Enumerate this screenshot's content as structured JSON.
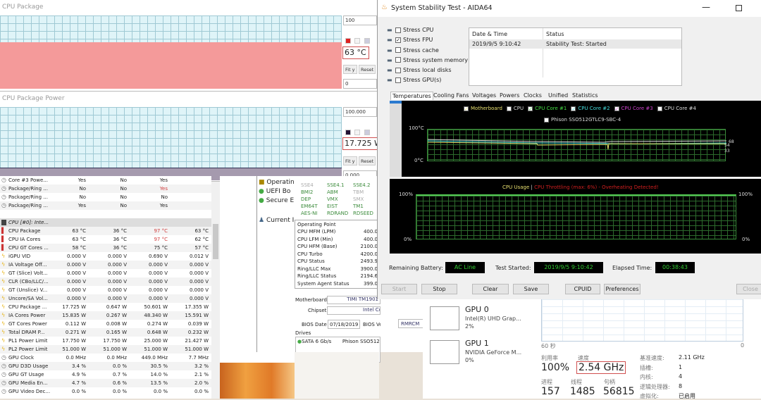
{
  "graphs": [
    {
      "title": "CPU Package",
      "max": "100",
      "value": "63 °C",
      "min": "0",
      "fill_percent": 63,
      "fit": "Fit y",
      "reset": "Reset",
      "color": "#f49a9a"
    },
    {
      "title": "CPU Package Power",
      "max": "100.000",
      "value": "17.725 W",
      "min": "0.000",
      "fill_percent": 17.7,
      "fit": "Fit y",
      "reset": "Reset",
      "color": "#a59aae"
    }
  ],
  "sensors": {
    "top_rows": [
      {
        "label": "Core #3 Powe...",
        "v": [
          "Yes",
          "No",
          "Yes",
          ""
        ]
      },
      {
        "label": "Package/Ring ...",
        "v": [
          "No",
          "No",
          "Yes",
          ""
        ],
        "red": 2
      },
      {
        "label": "Package/Ring ...",
        "v": [
          "No",
          "No",
          "No",
          ""
        ]
      },
      {
        "label": "Package/Ring ...",
        "v": [
          "Yes",
          "No",
          "Yes",
          ""
        ]
      }
    ],
    "group": "CPU [#0]: Inte...",
    "rows": [
      {
        "label": "CPU Package",
        "v": [
          "63 °C",
          "36 °C",
          "97 °C",
          "63 °C"
        ],
        "icon": "thermometer",
        "red": 2
      },
      {
        "label": "CPU IA Cores",
        "v": [
          "63 °C",
          "36 °C",
          "97 °C",
          "62 °C"
        ],
        "icon": "thermometer",
        "red": 2
      },
      {
        "label": "CPU GT Cores ...",
        "v": [
          "58 °C",
          "36 °C",
          "75 °C",
          "57 °C"
        ],
        "icon": "thermometer"
      },
      {
        "label": "iGPU VID",
        "v": [
          "0.000 V",
          "0.000 V",
          "0.690 V",
          "0.012 V"
        ],
        "icon": "bolt"
      },
      {
        "label": "IA Voltage Off...",
        "v": [
          "0.000 V",
          "0.000 V",
          "0.000 V",
          "0.000 V"
        ],
        "icon": "bolt"
      },
      {
        "label": "GT (Slice) Volt...",
        "v": [
          "0.000 V",
          "0.000 V",
          "0.000 V",
          "0.000 V"
        ],
        "icon": "bolt"
      },
      {
        "label": "CLR (CBo/LLC/...",
        "v": [
          "0.000 V",
          "0.000 V",
          "0.000 V",
          "0.000 V"
        ],
        "icon": "bolt"
      },
      {
        "label": "GT (Unslice) V...",
        "v": [
          "0.000 V",
          "0.000 V",
          "0.000 V",
          "0.000 V"
        ],
        "icon": "bolt"
      },
      {
        "label": "Uncore/SA Vol...",
        "v": [
          "0.000 V",
          "0.000 V",
          "0.000 V",
          "0.000 V"
        ],
        "icon": "bolt"
      },
      {
        "label": "CPU Package ...",
        "v": [
          "17.725 W",
          "0.647 W",
          "50.601 W",
          "17.355 W"
        ],
        "icon": "bolt"
      },
      {
        "label": "IA Cores Power",
        "v": [
          "15.835 W",
          "0.267 W",
          "48.340 W",
          "15.591 W"
        ],
        "icon": "bolt"
      },
      {
        "label": "GT Cores Power",
        "v": [
          "0.112 W",
          "0.008 W",
          "0.274 W",
          "0.039 W"
        ],
        "icon": "bolt"
      },
      {
        "label": "Total DRAM P...",
        "v": [
          "0.271 W",
          "0.165 W",
          "0.648 W",
          "0.232 W"
        ],
        "icon": "bolt"
      },
      {
        "label": "PL1 Power Limit",
        "v": [
          "17.750 W",
          "17.750 W",
          "25.000 W",
          "21.427 W"
        ],
        "icon": "bolt"
      },
      {
        "label": "PL2 Power Limit",
        "v": [
          "51.000 W",
          "51.000 W",
          "51.000 W",
          "51.000 W"
        ],
        "icon": "bolt"
      },
      {
        "label": "GPU Clock",
        "v": [
          "0.0 MHz",
          "0.0 MHz",
          "449.0 MHz",
          "7.7 MHz"
        ],
        "icon": "clock"
      },
      {
        "label": "GPU D3D Usage",
        "v": [
          "3.4 %",
          "0.0 %",
          "30.5 %",
          "3.2 %"
        ],
        "icon": "clock"
      },
      {
        "label": "GPU GT Usage",
        "v": [
          "4.9 %",
          "0.7 %",
          "14.0 %",
          "2.1 %"
        ],
        "icon": "clock"
      },
      {
        "label": "GPU Media En...",
        "v": [
          "4.7 %",
          "0.6 %",
          "13.5 %",
          "2.0 %"
        ],
        "icon": "clock"
      },
      {
        "label": "GPU Video Dec...",
        "v": [
          "0.0 %",
          "0.0 %",
          "0.0 %",
          "0.0 %"
        ],
        "icon": "clock"
      }
    ]
  },
  "summary": {
    "items": [
      "Operatin",
      "UEFI Bo",
      "Secure E",
      "Current I"
    ],
    "features": [
      [
        "SSE4",
        "SSE4.1",
        "SSE4.2"
      ],
      [
        "BMI2",
        "ABM",
        "TBM"
      ],
      [
        "DEP",
        "VMX",
        "SMX"
      ],
      [
        "EM64T",
        "EIST",
        "TM1"
      ],
      [
        "AES-NI",
        "RDRAND",
        "RDSEED"
      ]
    ],
    "op_header": "Operating Point",
    "op_rows": [
      [
        "CPU MFM (LPM)",
        "400.0"
      ],
      [
        "CPU LFM (Min)",
        "400.0"
      ],
      [
        "CPU HFM (Base)",
        "2100.0"
      ],
      [
        "CPU Turbo",
        "4200.0"
      ],
      [
        "CPU Status",
        "2493.9"
      ],
      [
        "Ring/LLC Max",
        "3900.0"
      ],
      [
        "Ring/LLC Status",
        "2194.6"
      ],
      [
        "System Agent Status",
        "399.0"
      ]
    ],
    "motherboard_label": "Motherboard",
    "motherboard": "TIMI TM1901",
    "chipset_label": "Chipset",
    "chipset": "Intel Comet Lake-U PCH-LP",
    "bios_date_label": "BIOS Date",
    "bios_date": "07/18/2019",
    "bios_version_label": "BIOS Version",
    "bios_version": "RMRCM",
    "drives_label": "Drives",
    "drive_iface": "SATA 6 Gb/s",
    "drive_name": "Phison SSO512GTLC9-SBC-4 [512"
  },
  "aida": {
    "title": "System Stability Test - AIDA64",
    "stress": [
      {
        "label": "Stress CPU",
        "checked": false
      },
      {
        "label": "Stress FPU",
        "checked": true
      },
      {
        "label": "Stress cache",
        "checked": false
      },
      {
        "label": "Stress system memory",
        "checked": false
      },
      {
        "label": "Stress local disks",
        "checked": false
      },
      {
        "label": "Stress GPU(s)",
        "checked": false
      }
    ],
    "log_headers": [
      "Date & Time",
      "Status"
    ],
    "log": [
      [
        "2019/9/5 9:10:42",
        "Stability Test: Started"
      ]
    ],
    "tabs": [
      "Temperatures",
      "Cooling Fans",
      "Voltages",
      "Powers",
      "Clocks",
      "Unified",
      "Statistics"
    ],
    "legend": [
      {
        "label": "Motherboard",
        "color": "#e8e070"
      },
      {
        "label": "CPU",
        "color": "#dddddd"
      },
      {
        "label": "CPU Core #1",
        "color": "#44dd44"
      },
      {
        "label": "CPU Core #2",
        "color": "#44dddd"
      },
      {
        "label": "CPU Core #3",
        "color": "#cc44cc"
      },
      {
        "label": "CPU Core #4",
        "color": "#dddddd"
      }
    ],
    "legend2": "Phison SSO512GTLC9-SBC-4",
    "temp_max": "100°C",
    "temp_min": "0°C",
    "temp_readings": [
      "68",
      "54",
      "33"
    ],
    "usage_title": "CPU Usage",
    "usage_sep": "|",
    "throttle": "CPU Throttling (max: 6%) - Overheating Detected!",
    "usage_max": "100%",
    "usage_min": "0%",
    "usage_max_r": "100%",
    "usage_min_r": "0%",
    "battery_label": "Remaining Battery:",
    "battery": "AC Line",
    "started_label": "Test Started:",
    "started": "2019/9/5 9:10:42",
    "elapsed_label": "Elapsed Time:",
    "elapsed": "00:38:43",
    "buttons": [
      "Start",
      "Stop",
      "Clear",
      "Save",
      "CPUID",
      "Preferences",
      "Close"
    ]
  },
  "taskmgr": {
    "gpus": [
      {
        "name": "GPU 0",
        "model": "Intel(R) UHD Grap...",
        "usage": "2%"
      },
      {
        "name": "GPU 1",
        "model": "NVIDIA GeForce M...",
        "usage": "0%"
      }
    ],
    "axis_left": "60 秒",
    "axis_right": "0",
    "util_label": "利用率",
    "util": "100%",
    "speed_label": "速度",
    "speed": "2.54 GHz",
    "proc_label": "进程",
    "proc": "157",
    "thread_label": "线程",
    "thread": "1485",
    "handle_label": "句柄",
    "handle": "56815",
    "specs": [
      [
        "基准速度:",
        "2.11 GHz"
      ],
      [
        "插槽:",
        "1"
      ],
      [
        "内核:",
        "4"
      ],
      [
        "逻辑处理器:",
        "8"
      ],
      [
        "虚拟化:",
        "已启用"
      ]
    ]
  }
}
